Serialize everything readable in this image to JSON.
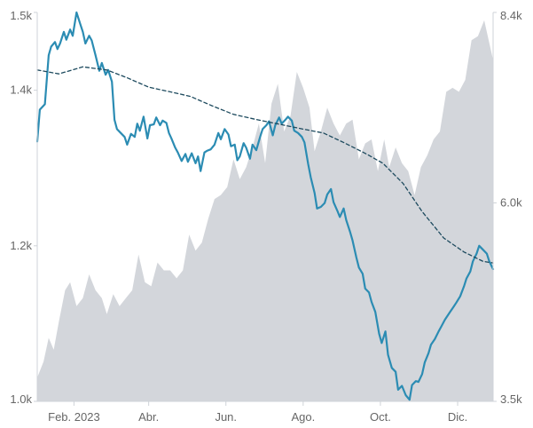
{
  "chart_data": {
    "type": "line",
    "title": "",
    "xlabel": "",
    "ylabel": "",
    "x_tick_labels": [
      {
        "x": "2023-02-01",
        "label": "Feb. 2023"
      },
      {
        "x": "2023-04-01",
        "label": "Abr."
      },
      {
        "x": "2023-06-01",
        "label": "Jun."
      },
      {
        "x": "2023-08-01",
        "label": "Ago."
      },
      {
        "x": "2023-10-01",
        "label": "Oct."
      },
      {
        "x": "2023-12-01",
        "label": "Dic."
      }
    ],
    "xlim": [
      "2023-01-03",
      "2023-12-29"
    ],
    "left_axis": {
      "ylim": [
        1000,
        1500
      ],
      "ticks": [
        {
          "value": 1000,
          "label": "1.0k"
        },
        {
          "value": 1200,
          "label": "1.2k"
        },
        {
          "value": 1400,
          "label": "1.4k"
        },
        {
          "value": 1500,
          "label": "1.5k"
        }
      ]
    },
    "right_axis": {
      "ylim": [
        3500,
        8400
      ],
      "ticks": [
        {
          "value": 3500,
          "label": "3.5k"
        },
        {
          "value": 6000,
          "label": "6.0k"
        },
        {
          "value": 8400,
          "label": "8.4k"
        }
      ]
    },
    "grid": false,
    "series": [
      {
        "role": "area",
        "axis": "right",
        "color": "#d3d6db",
        "points": [
          [
            "2023-01-03",
            3800
          ],
          [
            "2023-01-08",
            4000
          ],
          [
            "2023-01-12",
            4300
          ],
          [
            "2023-01-16",
            4150
          ],
          [
            "2023-01-20",
            4500
          ],
          [
            "2023-01-25",
            4900
          ],
          [
            "2023-01-29",
            5000
          ],
          [
            "2023-02-03",
            4700
          ],
          [
            "2023-02-08",
            4800
          ],
          [
            "2023-02-13",
            5100
          ],
          [
            "2023-02-18",
            4900
          ],
          [
            "2023-02-23",
            4800
          ],
          [
            "2023-02-27",
            4600
          ],
          [
            "2023-03-04",
            4850
          ],
          [
            "2023-03-09",
            4700
          ],
          [
            "2023-03-14",
            4800
          ],
          [
            "2023-03-19",
            4900
          ],
          [
            "2023-03-24",
            5350
          ],
          [
            "2023-03-29",
            5000
          ],
          [
            "2023-04-03",
            4950
          ],
          [
            "2023-04-08",
            5250
          ],
          [
            "2023-04-13",
            5150
          ],
          [
            "2023-04-18",
            5150
          ],
          [
            "2023-04-23",
            5050
          ],
          [
            "2023-04-28",
            5150
          ],
          [
            "2023-05-03",
            5600
          ],
          [
            "2023-05-08",
            5400
          ],
          [
            "2023-05-13",
            5500
          ],
          [
            "2023-05-18",
            5800
          ],
          [
            "2023-05-23",
            6050
          ],
          [
            "2023-05-28",
            6100
          ],
          [
            "2023-06-02",
            6200
          ],
          [
            "2023-06-07",
            6550
          ],
          [
            "2023-06-12",
            6300
          ],
          [
            "2023-06-17",
            6450
          ],
          [
            "2023-06-22",
            6700
          ],
          [
            "2023-06-27",
            7000
          ],
          [
            "2023-07-02",
            6500
          ],
          [
            "2023-07-07",
            7250
          ],
          [
            "2023-07-12",
            7500
          ],
          [
            "2023-07-17",
            6900
          ],
          [
            "2023-07-22",
            7100
          ],
          [
            "2023-07-27",
            7650
          ],
          [
            "2023-08-01",
            7450
          ],
          [
            "2023-08-06",
            7200
          ],
          [
            "2023-08-10",
            6650
          ],
          [
            "2023-08-15",
            6900
          ],
          [
            "2023-08-20",
            7200
          ],
          [
            "2023-08-25",
            7000
          ],
          [
            "2023-08-30",
            6850
          ],
          [
            "2023-09-04",
            7000
          ],
          [
            "2023-09-09",
            7050
          ],
          [
            "2023-09-14",
            6550
          ],
          [
            "2023-09-19",
            6750
          ],
          [
            "2023-09-24",
            6800
          ],
          [
            "2023-09-29",
            6400
          ],
          [
            "2023-10-04",
            6800
          ],
          [
            "2023-10-08",
            6450
          ],
          [
            "2023-10-13",
            6700
          ],
          [
            "2023-10-18",
            6500
          ],
          [
            "2023-10-23",
            6400
          ],
          [
            "2023-10-28",
            6100
          ],
          [
            "2023-11-02",
            6450
          ],
          [
            "2023-11-07",
            6600
          ],
          [
            "2023-11-12",
            6800
          ],
          [
            "2023-11-17",
            6900
          ],
          [
            "2023-11-22",
            7400
          ],
          [
            "2023-11-27",
            7450
          ],
          [
            "2023-12-02",
            7400
          ],
          [
            "2023-12-07",
            7550
          ],
          [
            "2023-12-12",
            8050
          ],
          [
            "2023-12-17",
            8100
          ],
          [
            "2023-12-22",
            8300
          ],
          [
            "2023-12-29",
            7800
          ]
        ]
      },
      {
        "role": "main",
        "axis": "left",
        "color": "#2b8cb3",
        "points": [
          [
            "2023-01-03",
            1334
          ],
          [
            "2023-01-05",
            1375
          ],
          [
            "2023-01-09",
            1382
          ],
          [
            "2023-01-12",
            1445
          ],
          [
            "2023-01-14",
            1456
          ],
          [
            "2023-01-17",
            1462
          ],
          [
            "2023-01-19",
            1453
          ],
          [
            "2023-01-21",
            1460
          ],
          [
            "2023-01-24",
            1475
          ],
          [
            "2023-01-26",
            1465
          ],
          [
            "2023-01-29",
            1478
          ],
          [
            "2023-01-31",
            1470
          ],
          [
            "2023-02-03",
            1500
          ],
          [
            "2023-02-06",
            1485
          ],
          [
            "2023-02-08",
            1475
          ],
          [
            "2023-02-10",
            1460
          ],
          [
            "2023-02-13",
            1470
          ],
          [
            "2023-02-15",
            1464
          ],
          [
            "2023-02-18",
            1445
          ],
          [
            "2023-02-21",
            1425
          ],
          [
            "2023-02-23",
            1435
          ],
          [
            "2023-02-26",
            1420
          ],
          [
            "2023-02-28",
            1426
          ],
          [
            "2023-03-03",
            1411
          ],
          [
            "2023-03-05",
            1362
          ],
          [
            "2023-03-07",
            1350
          ],
          [
            "2023-03-10",
            1345
          ],
          [
            "2023-03-13",
            1340
          ],
          [
            "2023-03-15",
            1330
          ],
          [
            "2023-03-18",
            1344
          ],
          [
            "2023-03-21",
            1340
          ],
          [
            "2023-03-23",
            1357
          ],
          [
            "2023-03-25",
            1348
          ],
          [
            "2023-03-28",
            1366
          ],
          [
            "2023-03-31",
            1338
          ],
          [
            "2023-04-02",
            1355
          ],
          [
            "2023-04-05",
            1356
          ],
          [
            "2023-04-07",
            1365
          ],
          [
            "2023-04-10",
            1355
          ],
          [
            "2023-04-12",
            1361
          ],
          [
            "2023-04-15",
            1358
          ],
          [
            "2023-04-17",
            1345
          ],
          [
            "2023-04-19",
            1338
          ],
          [
            "2023-04-22",
            1326
          ],
          [
            "2023-04-24",
            1320
          ],
          [
            "2023-04-27",
            1309
          ],
          [
            "2023-04-30",
            1318
          ],
          [
            "2023-05-02",
            1308
          ],
          [
            "2023-05-05",
            1319
          ],
          [
            "2023-05-08",
            1306
          ],
          [
            "2023-05-10",
            1315
          ],
          [
            "2023-05-12",
            1296
          ],
          [
            "2023-05-15",
            1320
          ],
          [
            "2023-05-17",
            1322
          ],
          [
            "2023-05-20",
            1324
          ],
          [
            "2023-05-23",
            1330
          ],
          [
            "2023-05-26",
            1345
          ],
          [
            "2023-05-28",
            1337
          ],
          [
            "2023-05-31",
            1350
          ],
          [
            "2023-06-03",
            1343
          ],
          [
            "2023-06-05",
            1328
          ],
          [
            "2023-06-08",
            1330
          ],
          [
            "2023-06-10",
            1310
          ],
          [
            "2023-06-12",
            1315
          ],
          [
            "2023-06-15",
            1332
          ],
          [
            "2023-06-17",
            1326
          ],
          [
            "2023-06-20",
            1312
          ],
          [
            "2023-06-22",
            1330
          ],
          [
            "2023-06-25",
            1323
          ],
          [
            "2023-06-28",
            1340
          ],
          [
            "2023-06-30",
            1350
          ],
          [
            "2023-07-03",
            1355
          ],
          [
            "2023-07-05",
            1360
          ],
          [
            "2023-07-08",
            1342
          ],
          [
            "2023-07-10",
            1355
          ],
          [
            "2023-07-13",
            1365
          ],
          [
            "2023-07-15",
            1357
          ],
          [
            "2023-07-18",
            1362
          ],
          [
            "2023-07-20",
            1366
          ],
          [
            "2023-07-23",
            1361
          ],
          [
            "2023-07-25",
            1348
          ],
          [
            "2023-07-28",
            1345
          ],
          [
            "2023-07-31",
            1340
          ],
          [
            "2023-08-02",
            1333
          ],
          [
            "2023-08-05",
            1305
          ],
          [
            "2023-08-07",
            1288
          ],
          [
            "2023-08-10",
            1268
          ],
          [
            "2023-08-12",
            1248
          ],
          [
            "2023-08-15",
            1250
          ],
          [
            "2023-08-18",
            1255
          ],
          [
            "2023-08-20",
            1266
          ],
          [
            "2023-08-23",
            1273
          ],
          [
            "2023-08-25",
            1256
          ],
          [
            "2023-08-28",
            1245
          ],
          [
            "2023-08-30",
            1237
          ],
          [
            "2023-09-02",
            1248
          ],
          [
            "2023-09-04",
            1233
          ],
          [
            "2023-09-07",
            1218
          ],
          [
            "2023-09-09",
            1207
          ],
          [
            "2023-09-12",
            1185
          ],
          [
            "2023-09-14",
            1172
          ],
          [
            "2023-09-17",
            1164
          ],
          [
            "2023-09-19",
            1145
          ],
          [
            "2023-09-22",
            1140
          ],
          [
            "2023-09-24",
            1128
          ],
          [
            "2023-09-27",
            1115
          ],
          [
            "2023-09-30",
            1087
          ],
          [
            "2023-10-02",
            1075
          ],
          [
            "2023-10-05",
            1090
          ],
          [
            "2023-10-07",
            1060
          ],
          [
            "2023-10-10",
            1043
          ],
          [
            "2023-10-13",
            1038
          ],
          [
            "2023-10-15",
            1015
          ],
          [
            "2023-10-18",
            1020
          ],
          [
            "2023-10-21",
            1008
          ],
          [
            "2023-10-24",
            1002
          ],
          [
            "2023-10-26",
            1021
          ],
          [
            "2023-10-29",
            1026
          ],
          [
            "2023-10-31",
            1025
          ],
          [
            "2023-11-03",
            1035
          ],
          [
            "2023-11-05",
            1050
          ],
          [
            "2023-11-08",
            1062
          ],
          [
            "2023-11-10",
            1073
          ],
          [
            "2023-11-13",
            1080
          ],
          [
            "2023-11-16",
            1090
          ],
          [
            "2023-11-18",
            1096
          ],
          [
            "2023-11-21",
            1105
          ],
          [
            "2023-11-23",
            1110
          ],
          [
            "2023-11-25",
            1115
          ],
          [
            "2023-11-28",
            1122
          ],
          [
            "2023-11-30",
            1127
          ],
          [
            "2023-12-03",
            1135
          ],
          [
            "2023-12-06",
            1148
          ],
          [
            "2023-12-08",
            1158
          ],
          [
            "2023-12-11",
            1167
          ],
          [
            "2023-12-13",
            1180
          ],
          [
            "2023-12-16",
            1190
          ],
          [
            "2023-12-18",
            1200
          ],
          [
            "2023-12-21",
            1195
          ],
          [
            "2023-12-24",
            1190
          ],
          [
            "2023-12-26",
            1180
          ],
          [
            "2023-12-29",
            1170
          ]
        ]
      },
      {
        "role": "trend",
        "axis": "left",
        "color": "#1d4a5e",
        "points": [
          [
            "2023-01-03",
            1426
          ],
          [
            "2023-01-20",
            1421
          ],
          [
            "2023-02-08",
            1430
          ],
          [
            "2023-02-27",
            1426
          ],
          [
            "2023-03-15",
            1416
          ],
          [
            "2023-04-01",
            1404
          ],
          [
            "2023-04-18",
            1398
          ],
          [
            "2023-05-04",
            1392
          ],
          [
            "2023-05-21",
            1380
          ],
          [
            "2023-06-07",
            1369
          ],
          [
            "2023-06-26",
            1362
          ],
          [
            "2023-07-14",
            1356
          ],
          [
            "2023-08-01",
            1350
          ],
          [
            "2023-08-17",
            1345
          ],
          [
            "2023-09-03",
            1332
          ],
          [
            "2023-09-20",
            1318
          ],
          [
            "2023-10-03",
            1306
          ],
          [
            "2023-10-19",
            1280
          ],
          [
            "2023-11-03",
            1244
          ],
          [
            "2023-11-20",
            1210
          ],
          [
            "2023-12-06",
            1192
          ],
          [
            "2023-12-21",
            1180
          ],
          [
            "2023-12-29",
            1178
          ]
        ]
      }
    ]
  }
}
